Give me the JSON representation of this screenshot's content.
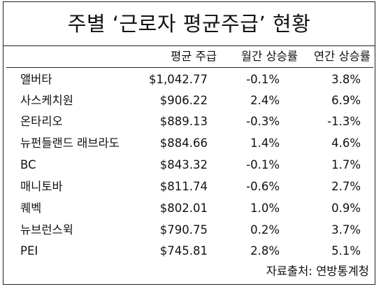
{
  "title": "주별 ‘근로자 평균주급’ 현황",
  "headers": {
    "name": "",
    "wage": "평균 주급",
    "mom": "월간 상승률",
    "yoy": "연간 상승률"
  },
  "rows": [
    {
      "name": "앨버타",
      "wage": "$1,042.77",
      "mom": "-0.1%",
      "yoy": "3.8%"
    },
    {
      "name": "사스케치원",
      "wage": "$906.22",
      "mom": "2.4%",
      "yoy": "6.9%"
    },
    {
      "name": "온타리오",
      "wage": "$889.13",
      "mom": "-0.3%",
      "yoy": "-1.3%"
    },
    {
      "name": "뉴펀들랜드 래브라도",
      "wage": "$884.66",
      "mom": "1.4%",
      "yoy": "4.6%"
    },
    {
      "name": "BC",
      "wage": "$843.32",
      "mom": "-0.1%",
      "yoy": "1.7%"
    },
    {
      "name": "매니토바",
      "wage": "$811.74",
      "mom": "-0.6%",
      "yoy": "2.7%"
    },
    {
      "name": "퀘벡",
      "wage": "$802.01",
      "mom": "1.0%",
      "yoy": "0.9%"
    },
    {
      "name": "뉴브런스윅",
      "wage": "$790.75",
      "mom": "0.2%",
      "yoy": "3.7%"
    },
    {
      "name": "PEI",
      "wage": "$745.81",
      "mom": "2.8%",
      "yoy": "5.1%"
    }
  ],
  "source": "자료출처: 연방통계청"
}
